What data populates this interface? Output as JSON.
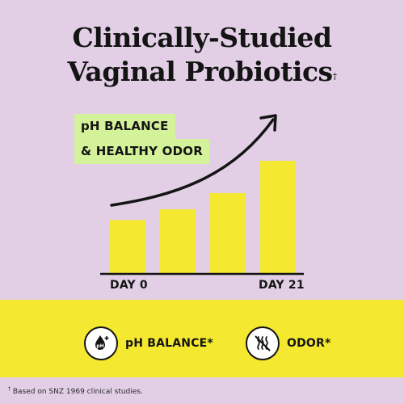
{
  "title": {
    "line1": "Clinically-Studied",
    "line2": "Vaginal Probiotics",
    "dagger": "†"
  },
  "tags": {
    "ph_balance": "pH BALANCE",
    "healthy_odor": "& HEALTHY ODOR"
  },
  "chart_data": {
    "type": "bar",
    "categories": [
      "",
      "",
      "",
      ""
    ],
    "values": [
      1,
      1.2,
      1.5,
      2.1
    ],
    "x_start_label": "DAY 0",
    "x_end_label": "DAY 21",
    "trend": "upward arrow",
    "bar_color": "#f5e831"
  },
  "features": [
    {
      "icon": "ph-drop-icon",
      "label": "pH BALANCE*"
    },
    {
      "icon": "odor-crossed-icon",
      "label": "ODOR*"
    }
  ],
  "footnote": {
    "mark": "†",
    "text": " Based on SNZ 1969 clinical studies."
  },
  "colors": {
    "background": "#e2cfe6",
    "highlight": "#d4f29a",
    "yellow": "#f5e831",
    "ink": "#141414"
  }
}
